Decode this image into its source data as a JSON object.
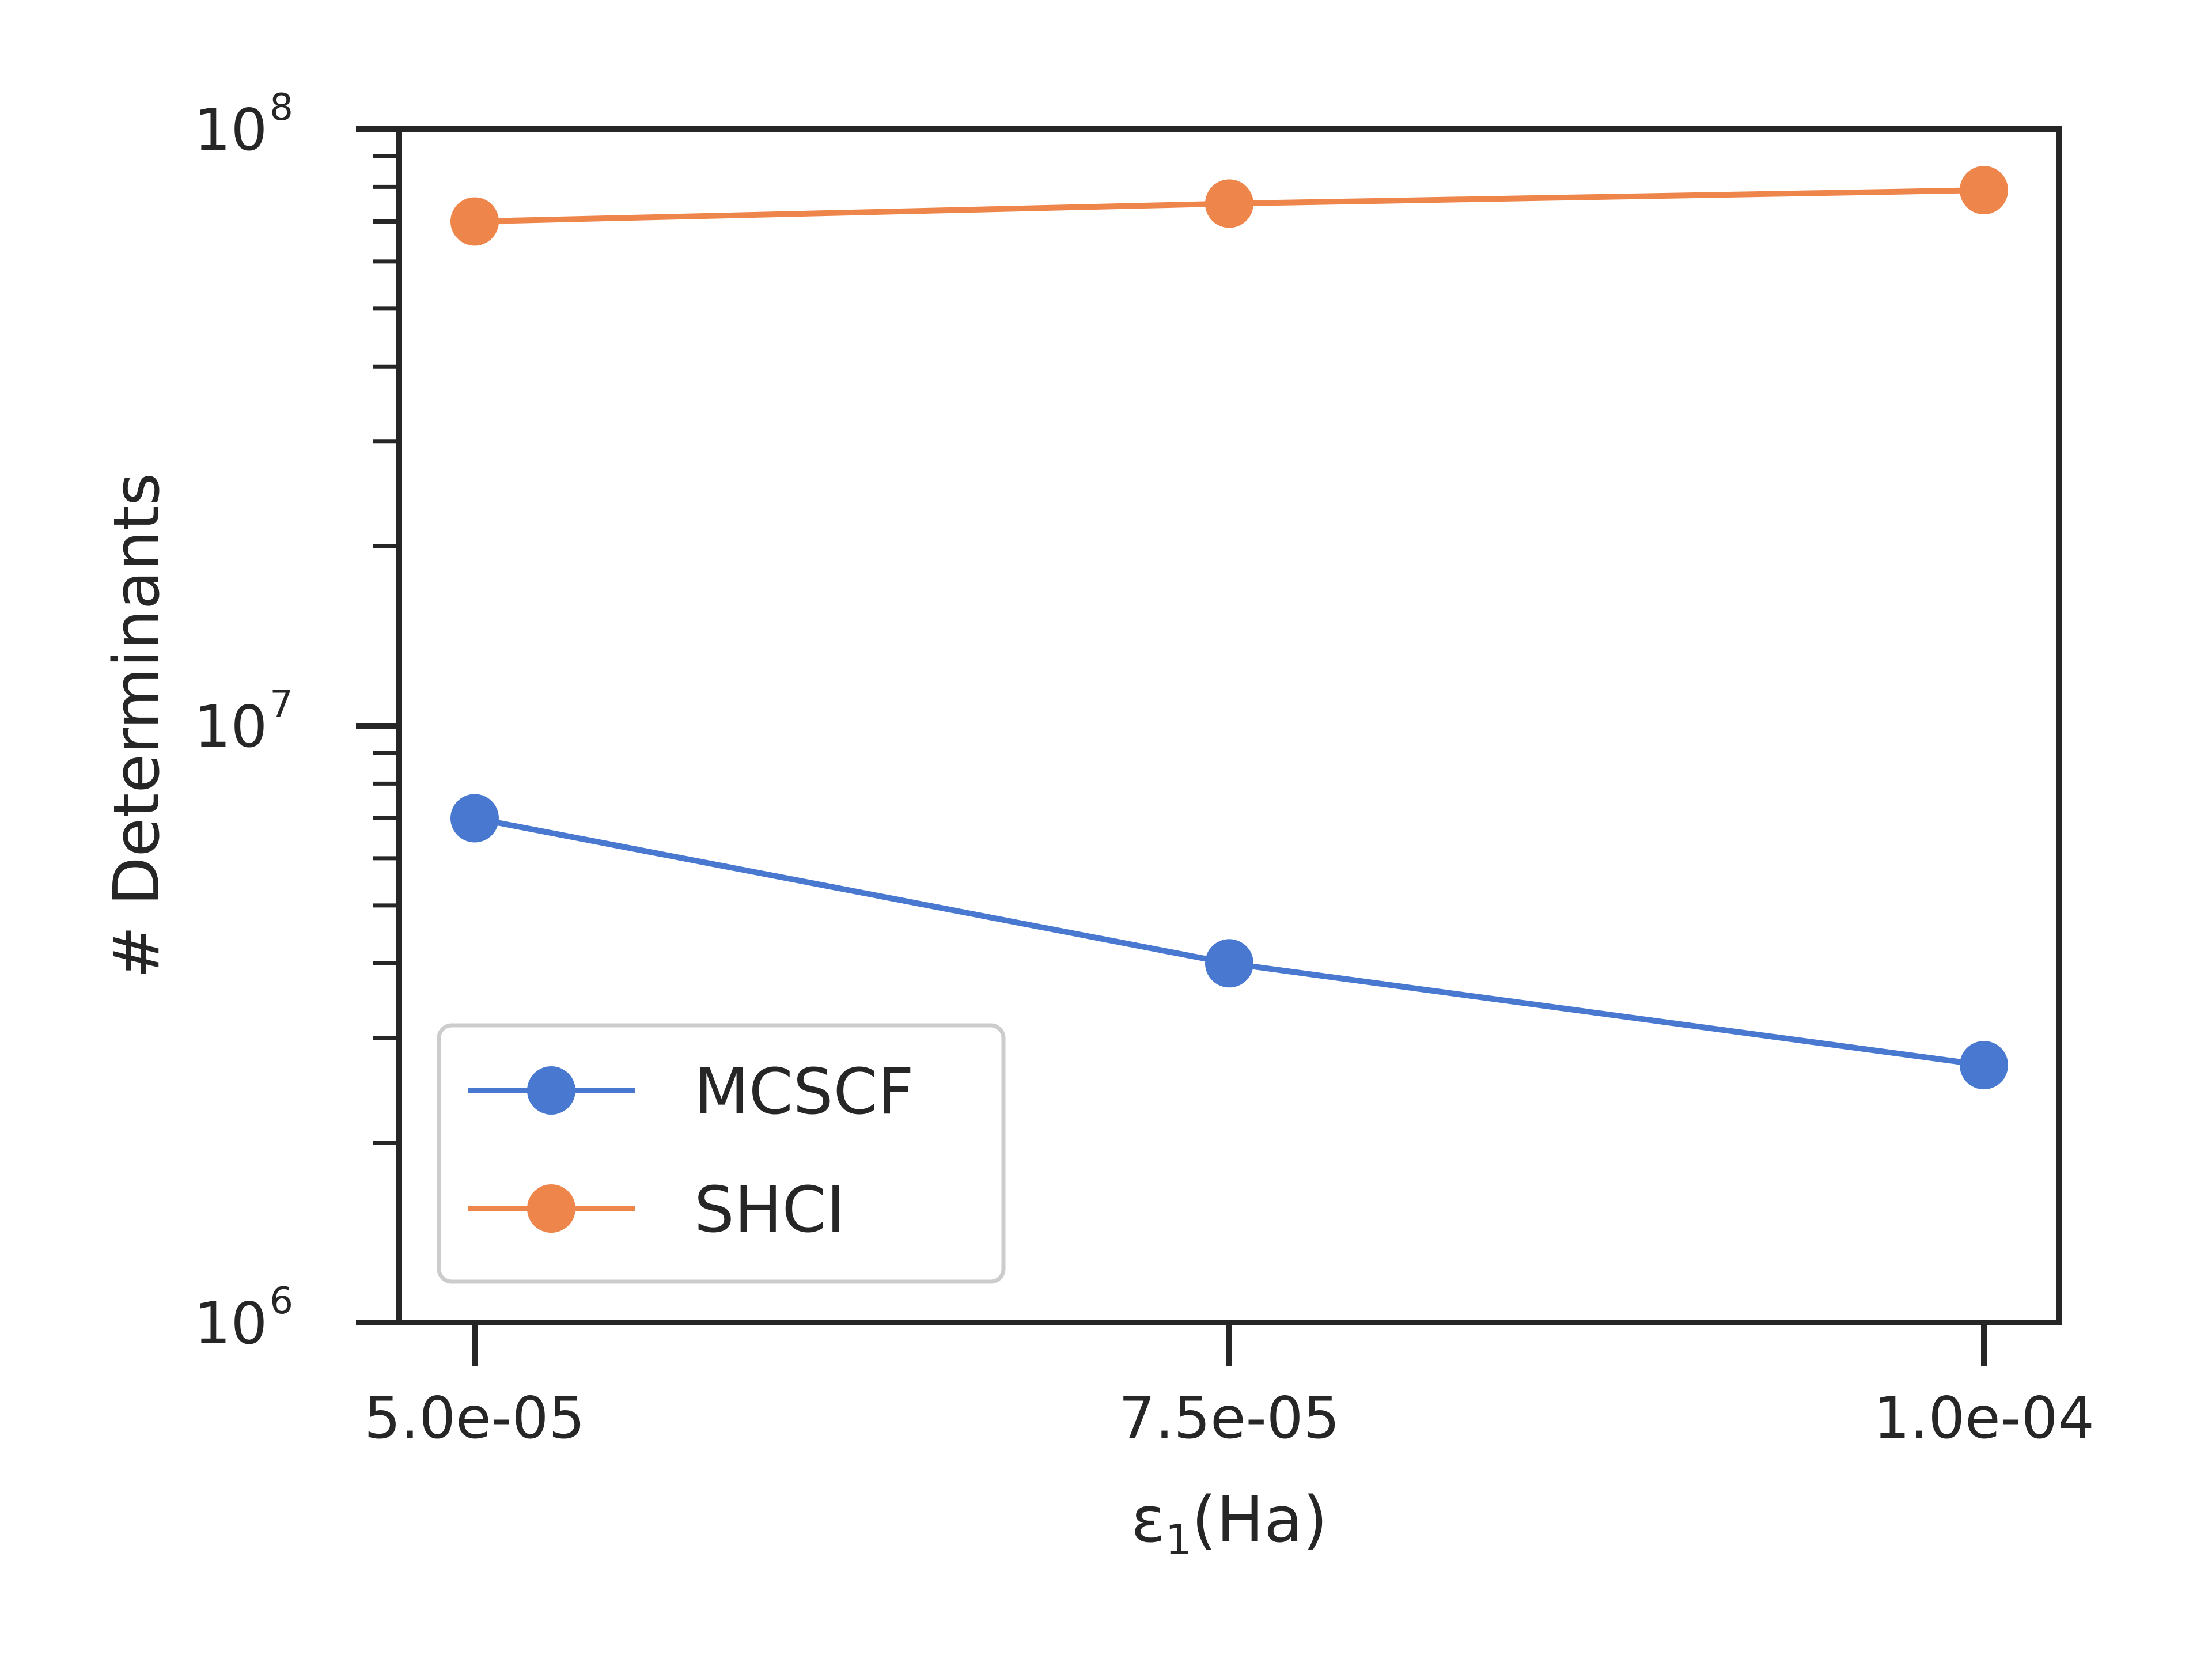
{
  "chart_data": {
    "type": "line",
    "title": "",
    "xlabel": {
      "main": "ε",
      "sub": "1",
      "rest": "(Ha)"
    },
    "ylabel": "# Determinants",
    "yscale": "log",
    "ylim": [
      1000000,
      100000000
    ],
    "xlim": [
      4.75e-05,
      0.0001025
    ],
    "x": [
      5e-05,
      7.5e-05,
      0.0001
    ],
    "x_tick_labels": [
      "5.0e-05",
      "7.5e-05",
      "1.0e-04"
    ],
    "y_tick_labels": [
      {
        "base": "10",
        "exp": "6"
      },
      {
        "base": "10",
        "exp": "7"
      },
      {
        "base": "10",
        "exp": "8"
      }
    ],
    "grid": false,
    "legend_position": "lower-left",
    "series": [
      {
        "name": "MCSCF",
        "color": "#4878d0",
        "values": [
          7000000,
          4000000,
          2700000
        ]
      },
      {
        "name": "SHCI",
        "color": "#ee854a",
        "values": [
          70000000,
          75000000,
          79000000
        ]
      }
    ]
  }
}
